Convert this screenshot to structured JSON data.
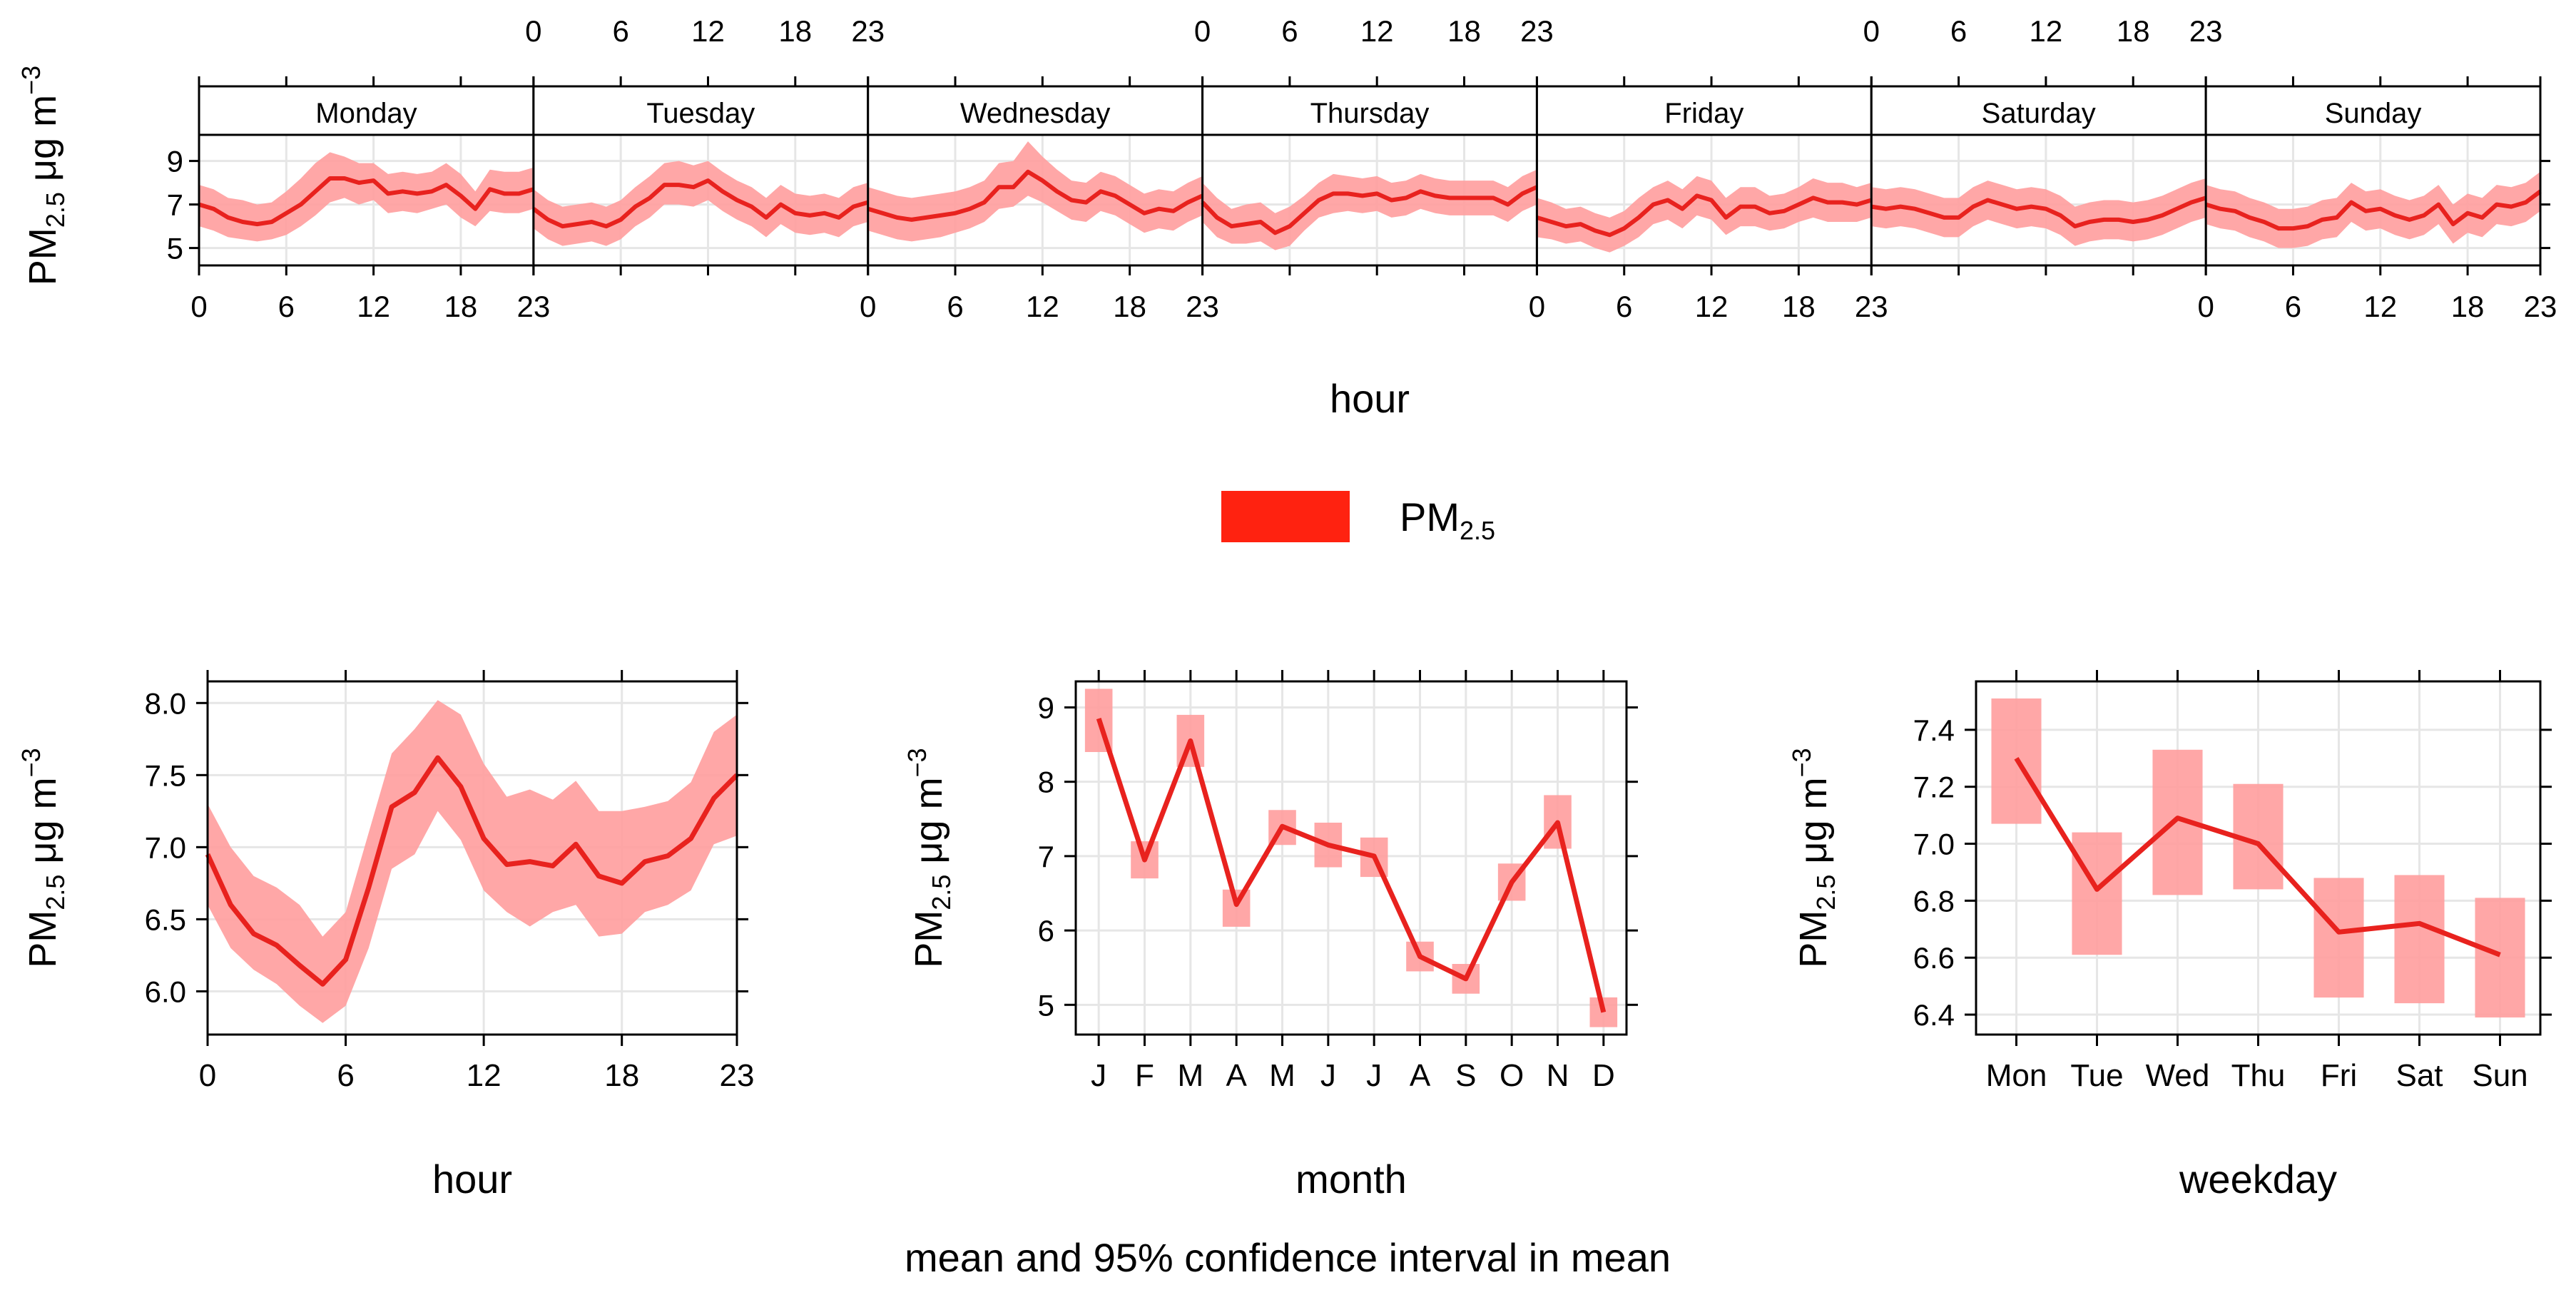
{
  "colors": {
    "line": "#e8221e",
    "band": "#ff9d9d",
    "legend_swatch": "#ff2210",
    "grid": "#e6e6e6",
    "strip_bg": "#ffffff",
    "axis": "#000000"
  },
  "legend": {
    "label_main": "PM",
    "label_sub": "2.5"
  },
  "ylabel": {
    "main": "PM",
    "sub": "2.5",
    "unit": " μg m",
    "exp": "−3"
  },
  "footer": "mean and 95% confidence interval in mean",
  "chart_data": [
    {
      "id": "weekly-hourly",
      "type": "line",
      "xlabel": "hour",
      "x_ticks": [
        0,
        6,
        12,
        18,
        23
      ],
      "y_ticks": [
        5,
        7,
        9
      ],
      "ylim": [
        4.2,
        10.2
      ],
      "panels": [
        {
          "label": "Monday",
          "mean": [
            7.0,
            6.8,
            6.4,
            6.2,
            6.1,
            6.2,
            6.6,
            7.0,
            7.6,
            8.2,
            8.2,
            8.0,
            8.1,
            7.5,
            7.6,
            7.5,
            7.6,
            7.9,
            7.4,
            6.8,
            7.7,
            7.5,
            7.5,
            7.7
          ],
          "lower": [
            6.0,
            5.8,
            5.5,
            5.4,
            5.3,
            5.4,
            5.6,
            6.0,
            6.5,
            7.1,
            7.3,
            7.0,
            7.2,
            6.6,
            6.7,
            6.6,
            6.8,
            7.0,
            6.4,
            6.0,
            6.7,
            6.6,
            6.6,
            6.8
          ],
          "upper": [
            7.9,
            7.7,
            7.3,
            7.2,
            7.0,
            7.1,
            7.6,
            8.2,
            8.9,
            9.4,
            9.2,
            8.9,
            8.9,
            8.4,
            8.5,
            8.4,
            8.5,
            8.9,
            8.4,
            7.6,
            8.6,
            8.5,
            8.5,
            8.7
          ]
        },
        {
          "label": "Tuesday",
          "mean": [
            6.8,
            6.3,
            6.0,
            6.1,
            6.2,
            6.0,
            6.3,
            6.9,
            7.3,
            7.9,
            7.9,
            7.8,
            8.1,
            7.6,
            7.2,
            6.9,
            6.4,
            7.0,
            6.6,
            6.5,
            6.6,
            6.4,
            6.9,
            7.1
          ],
          "lower": [
            5.9,
            5.4,
            5.1,
            5.2,
            5.3,
            5.1,
            5.4,
            6.0,
            6.4,
            7.0,
            7.0,
            6.9,
            7.2,
            6.7,
            6.3,
            6.0,
            5.5,
            6.1,
            5.7,
            5.6,
            5.7,
            5.5,
            6.0,
            6.2
          ],
          "upper": [
            7.7,
            7.2,
            6.9,
            7.0,
            7.1,
            6.9,
            7.2,
            7.8,
            8.3,
            8.9,
            9.0,
            8.8,
            9.0,
            8.5,
            8.1,
            7.8,
            7.3,
            7.9,
            7.5,
            7.4,
            7.5,
            7.3,
            7.8,
            8.0
          ]
        },
        {
          "label": "Wednesday",
          "mean": [
            6.8,
            6.6,
            6.4,
            6.3,
            6.4,
            6.5,
            6.6,
            6.8,
            7.1,
            7.8,
            7.8,
            8.5,
            8.1,
            7.6,
            7.2,
            7.1,
            7.6,
            7.4,
            7.0,
            6.6,
            6.8,
            6.7,
            7.1,
            7.4
          ],
          "lower": [
            5.8,
            5.6,
            5.4,
            5.3,
            5.4,
            5.5,
            5.7,
            5.9,
            6.2,
            6.8,
            6.9,
            7.4,
            7.1,
            6.7,
            6.3,
            6.2,
            6.7,
            6.5,
            6.1,
            5.7,
            5.9,
            5.8,
            6.2,
            6.5
          ],
          "upper": [
            7.8,
            7.6,
            7.4,
            7.3,
            7.4,
            7.5,
            7.6,
            7.8,
            8.1,
            8.9,
            9.0,
            9.9,
            9.2,
            8.6,
            8.1,
            8.0,
            8.5,
            8.3,
            7.9,
            7.5,
            7.7,
            7.6,
            8.0,
            8.3
          ]
        },
        {
          "label": "Thursday",
          "mean": [
            7.1,
            6.4,
            6.0,
            6.1,
            6.2,
            5.7,
            6.0,
            6.6,
            7.2,
            7.5,
            7.5,
            7.4,
            7.5,
            7.2,
            7.3,
            7.6,
            7.4,
            7.3,
            7.3,
            7.3,
            7.3,
            7.0,
            7.5,
            7.8
          ],
          "lower": [
            6.2,
            5.5,
            5.2,
            5.2,
            5.3,
            4.9,
            5.1,
            5.8,
            6.4,
            6.6,
            6.7,
            6.6,
            6.7,
            6.4,
            6.5,
            6.8,
            6.6,
            6.5,
            6.5,
            6.5,
            6.5,
            6.2,
            6.7,
            7.0
          ],
          "upper": [
            8.0,
            7.3,
            6.8,
            7.0,
            7.1,
            6.6,
            6.9,
            7.4,
            8.0,
            8.4,
            8.3,
            8.2,
            8.3,
            8.0,
            8.1,
            8.4,
            8.2,
            8.1,
            8.1,
            8.1,
            8.1,
            7.8,
            8.3,
            8.6
          ]
        },
        {
          "label": "Friday",
          "mean": [
            6.4,
            6.2,
            6.0,
            6.1,
            5.8,
            5.6,
            5.9,
            6.4,
            7.0,
            7.2,
            6.8,
            7.4,
            7.2,
            6.4,
            6.9,
            6.9,
            6.6,
            6.7,
            7.0,
            7.3,
            7.1,
            7.1,
            7.0,
            7.2
          ],
          "lower": [
            5.5,
            5.4,
            5.2,
            5.3,
            5.0,
            4.8,
            5.1,
            5.5,
            6.1,
            6.3,
            5.9,
            6.5,
            6.3,
            5.6,
            6.0,
            6.0,
            5.8,
            5.9,
            6.2,
            6.4,
            6.2,
            6.2,
            6.2,
            6.4
          ],
          "upper": [
            7.3,
            7.1,
            6.8,
            6.9,
            6.6,
            6.4,
            6.7,
            7.3,
            7.8,
            8.1,
            7.7,
            8.3,
            8.1,
            7.3,
            7.8,
            7.8,
            7.4,
            7.5,
            7.8,
            8.2,
            8.0,
            8.0,
            7.8,
            8.0
          ]
        },
        {
          "label": "Saturday",
          "mean": [
            6.9,
            6.8,
            6.9,
            6.8,
            6.6,
            6.4,
            6.4,
            6.9,
            7.2,
            7.0,
            6.8,
            6.9,
            6.8,
            6.5,
            6.0,
            6.2,
            6.3,
            6.3,
            6.2,
            6.3,
            6.5,
            6.8,
            7.1,
            7.3
          ],
          "lower": [
            6.0,
            5.9,
            6.0,
            5.9,
            5.7,
            5.5,
            5.5,
            6.0,
            6.3,
            6.1,
            5.9,
            6.0,
            5.9,
            5.6,
            5.1,
            5.3,
            5.4,
            5.4,
            5.3,
            5.4,
            5.6,
            5.9,
            6.2,
            6.4
          ],
          "upper": [
            7.8,
            7.7,
            7.8,
            7.7,
            7.5,
            7.3,
            7.3,
            7.8,
            8.1,
            7.9,
            7.7,
            7.8,
            7.7,
            7.4,
            6.9,
            7.1,
            7.2,
            7.2,
            7.1,
            7.2,
            7.4,
            7.7,
            8.0,
            8.2
          ]
        },
        {
          "label": "Sunday",
          "mean": [
            7.0,
            6.8,
            6.7,
            6.4,
            6.2,
            5.9,
            5.9,
            6.0,
            6.3,
            6.4,
            7.1,
            6.7,
            6.8,
            6.5,
            6.3,
            6.5,
            7.0,
            6.1,
            6.6,
            6.4,
            7.0,
            6.9,
            7.1,
            7.6
          ],
          "lower": [
            6.1,
            5.9,
            5.8,
            5.5,
            5.3,
            5.0,
            5.0,
            5.1,
            5.4,
            5.5,
            6.2,
            5.8,
            5.9,
            5.6,
            5.4,
            5.6,
            6.1,
            5.2,
            5.7,
            5.5,
            6.1,
            6.0,
            6.2,
            6.7
          ],
          "upper": [
            7.9,
            7.7,
            7.6,
            7.3,
            7.1,
            6.8,
            6.8,
            6.9,
            7.2,
            7.3,
            8.0,
            7.6,
            7.7,
            7.4,
            7.2,
            7.4,
            7.9,
            7.0,
            7.5,
            7.3,
            7.9,
            7.8,
            8.0,
            8.5
          ]
        }
      ]
    },
    {
      "id": "hour",
      "type": "line",
      "xlabel": "hour",
      "x": [
        0,
        1,
        2,
        3,
        4,
        5,
        6,
        7,
        8,
        9,
        10,
        11,
        12,
        13,
        14,
        15,
        16,
        17,
        18,
        19,
        20,
        21,
        22,
        23
      ],
      "x_ticks": [
        0,
        6,
        12,
        18,
        23
      ],
      "y_ticks": [
        "6.0",
        "6.5",
        "7.0",
        "7.5",
        "8.0"
      ],
      "ylim": [
        5.7,
        8.15
      ],
      "mean": [
        6.95,
        6.6,
        6.4,
        6.32,
        6.18,
        6.05,
        6.22,
        6.72,
        7.28,
        7.38,
        7.62,
        7.42,
        7.06,
        6.88,
        6.9,
        6.87,
        7.02,
        6.8,
        6.75,
        6.9,
        6.94,
        7.06,
        7.34,
        7.5
      ],
      "lower": [
        6.6,
        6.3,
        6.15,
        6.05,
        5.9,
        5.78,
        5.9,
        6.3,
        6.85,
        6.95,
        7.25,
        7.05,
        6.7,
        6.55,
        6.45,
        6.55,
        6.6,
        6.38,
        6.4,
        6.55,
        6.6,
        6.7,
        7.02,
        7.08
      ],
      "upper": [
        7.3,
        7.0,
        6.8,
        6.72,
        6.6,
        6.38,
        6.55,
        7.1,
        7.65,
        7.82,
        8.02,
        7.92,
        7.58,
        7.35,
        7.4,
        7.33,
        7.46,
        7.25,
        7.25,
        7.28,
        7.32,
        7.45,
        7.8,
        7.92
      ]
    },
    {
      "id": "month",
      "type": "line",
      "xlabel": "month",
      "categories": [
        "J",
        "F",
        "M",
        "A",
        "M",
        "J",
        "J",
        "A",
        "S",
        "O",
        "N",
        "D"
      ],
      "y_ticks": [
        5,
        6,
        7,
        8,
        9
      ],
      "ylim": [
        4.6,
        9.35
      ],
      "mean": [
        8.85,
        6.95,
        8.55,
        6.35,
        7.4,
        7.15,
        7.0,
        5.65,
        5.35,
        6.65,
        7.45,
        4.9
      ],
      "lower": [
        8.4,
        6.7,
        8.2,
        6.05,
        7.15,
        6.85,
        6.72,
        5.45,
        5.15,
        6.4,
        7.1,
        4.7
      ],
      "upper": [
        9.25,
        7.2,
        8.9,
        6.55,
        7.62,
        7.45,
        7.25,
        5.85,
        5.55,
        6.9,
        7.82,
        5.1
      ]
    },
    {
      "id": "weekday",
      "type": "line",
      "xlabel": "weekday",
      "categories": [
        "Mon",
        "Tue",
        "Wed",
        "Thu",
        "Fri",
        "Sat",
        "Sun"
      ],
      "y_ticks": [
        "6.4",
        "6.6",
        "6.8",
        "7.0",
        "7.2",
        "7.4"
      ],
      "ylim": [
        6.33,
        7.57
      ],
      "mean": [
        7.3,
        6.84,
        7.09,
        7.0,
        6.69,
        6.72,
        6.61
      ],
      "lower": [
        7.07,
        6.61,
        6.82,
        6.84,
        6.46,
        6.44,
        6.39
      ],
      "upper": [
        7.51,
        7.04,
        7.33,
        7.21,
        6.88,
        6.89,
        6.81
      ]
    }
  ]
}
